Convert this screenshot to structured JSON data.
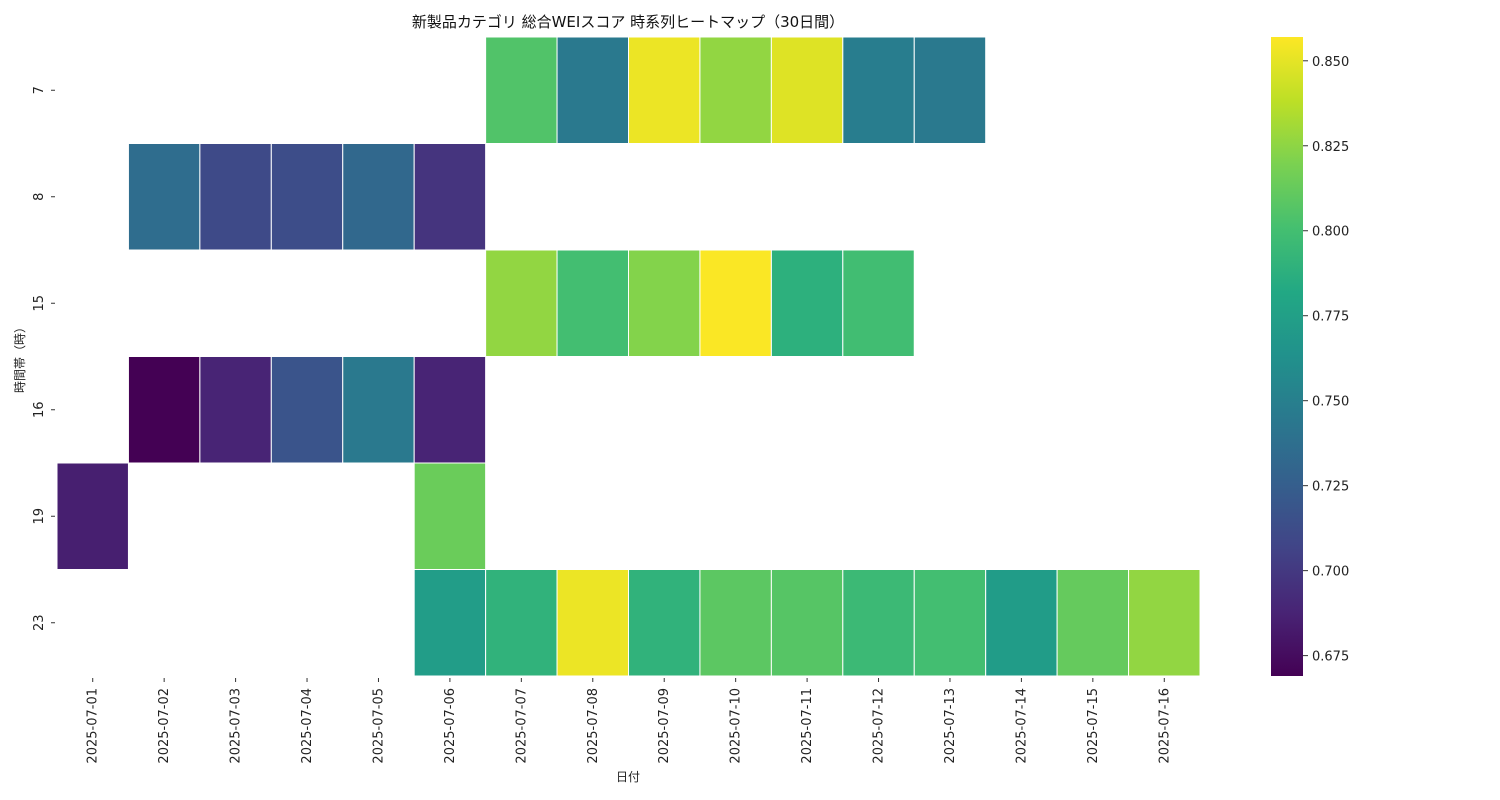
{
  "chart_data": {
    "type": "heatmap",
    "title": "新製品カテゴリ 総合WEIスコア 時系列ヒートマップ（30日間）",
    "xlabel": "日付",
    "ylabel": "時間帯（時）",
    "x": [
      "2025-07-01",
      "2025-07-02",
      "2025-07-03",
      "2025-07-04",
      "2025-07-05",
      "2025-07-06",
      "2025-07-07",
      "2025-07-08",
      "2025-07-09",
      "2025-07-10",
      "2025-07-11",
      "2025-07-12",
      "2025-07-13",
      "2025-07-14",
      "2025-07-15",
      "2025-07-16"
    ],
    "y": [
      "7",
      "8",
      "15",
      "16",
      "19",
      "23"
    ],
    "values": [
      [
        null,
        null,
        null,
        null,
        null,
        null,
        0.805,
        0.745,
        0.852,
        0.826,
        0.848,
        0.748,
        0.745,
        null,
        null,
        null
      ],
      [
        null,
        0.736,
        0.711,
        0.713,
        0.732,
        0.697,
        null,
        null,
        null,
        null,
        null,
        null,
        null,
        null,
        null,
        null
      ],
      [
        null,
        null,
        null,
        null,
        null,
        null,
        0.826,
        0.8,
        0.822,
        0.856,
        0.788,
        0.799,
        null,
        null,
        null,
        null
      ],
      [
        null,
        0.669,
        0.688,
        0.718,
        0.745,
        0.688,
        null,
        null,
        null,
        null,
        null,
        null,
        null,
        null,
        null,
        null
      ],
      [
        0.685,
        null,
        null,
        null,
        null,
        0.814,
        null,
        null,
        null,
        null,
        null,
        null,
        null,
        null,
        null,
        null
      ],
      [
        null,
        null,
        null,
        null,
        null,
        0.773,
        0.79,
        0.852,
        0.79,
        0.809,
        0.807,
        0.796,
        0.8,
        0.772,
        0.812,
        0.826
      ]
    ],
    "colorscale": "viridis",
    "color_range": [
      0.669,
      0.857
    ],
    "colorbar_ticks": [
      "0.675",
      "0.700",
      "0.725",
      "0.750",
      "0.775",
      "0.800",
      "0.825",
      "0.850"
    ],
    "cell_border_color": "#ffffff"
  }
}
